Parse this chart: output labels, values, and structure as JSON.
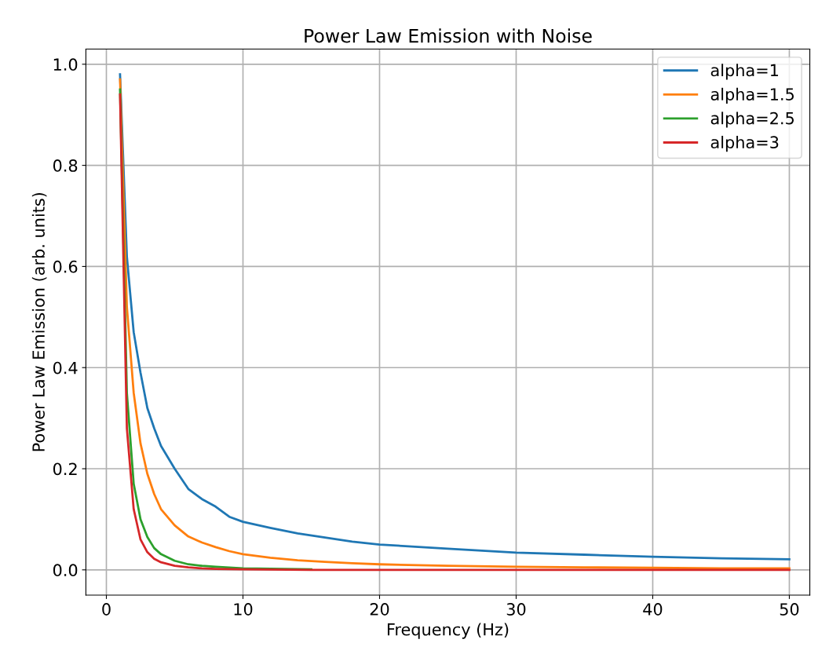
{
  "chart_data": {
    "type": "line",
    "title": "Power Law Emission with Noise",
    "xlabel": "Frequency (Hz)",
    "ylabel": "Power Law Emission (arb. units)",
    "series": [
      {
        "name": "alpha=1",
        "color": "#1f77b4",
        "x": [
          1,
          1.5,
          2,
          2.5,
          3,
          3.5,
          4,
          5,
          6,
          7,
          8,
          9,
          10,
          12,
          14,
          16,
          18,
          20,
          25,
          30,
          35,
          40,
          45,
          50
        ],
        "values": [
          0.98,
          0.62,
          0.47,
          0.39,
          0.32,
          0.28,
          0.245,
          0.2,
          0.16,
          0.14,
          0.125,
          0.105,
          0.095,
          0.083,
          0.072,
          0.064,
          0.056,
          0.05,
          0.042,
          0.034,
          0.03,
          0.026,
          0.023,
          0.021
        ]
      },
      {
        "name": "alpha=1.5",
        "color": "#ff7f0e",
        "x": [
          1,
          1.5,
          2,
          2.5,
          3,
          3.5,
          4,
          5,
          6,
          7,
          8,
          9,
          10,
          12,
          14,
          16,
          18,
          20,
          25,
          30,
          35,
          40,
          45,
          50
        ],
        "values": [
          0.97,
          0.52,
          0.35,
          0.25,
          0.19,
          0.15,
          0.12,
          0.088,
          0.066,
          0.054,
          0.045,
          0.037,
          0.031,
          0.024,
          0.019,
          0.016,
          0.013,
          0.011,
          0.008,
          0.006,
          0.005,
          0.004,
          0.003,
          0.003
        ]
      },
      {
        "name": "alpha=2.5",
        "color": "#2ca02c",
        "x": [
          1,
          1.5,
          2,
          2.5,
          3,
          3.5,
          4,
          5,
          6,
          7,
          8,
          10,
          15
        ],
        "values": [
          0.95,
          0.35,
          0.17,
          0.1,
          0.065,
          0.043,
          0.031,
          0.018,
          0.011,
          0.008,
          0.006,
          0.003,
          0.001
        ]
      },
      {
        "name": "alpha=3",
        "color": "#d62728",
        "x": [
          1,
          1.5,
          2,
          2.5,
          3,
          3.5,
          4,
          5,
          6,
          7,
          8,
          10,
          15,
          20,
          50
        ],
        "values": [
          0.94,
          0.28,
          0.12,
          0.06,
          0.035,
          0.022,
          0.015,
          0.008,
          0.005,
          0.003,
          0.002,
          0.001,
          0.0,
          0.0,
          0.0
        ]
      }
    ],
    "xlim": [
      -1.5,
      51.5
    ],
    "xticks": [
      0,
      10,
      20,
      30,
      40,
      50
    ],
    "ylim": [
      -0.05,
      1.03
    ],
    "yticks": [
      {
        "value": 0,
        "label": "0.0"
      },
      {
        "value": 0.2,
        "label": "0.2"
      },
      {
        "value": 0.4,
        "label": "0.4"
      },
      {
        "value": 0.6,
        "label": "0.6"
      },
      {
        "value": 0.8,
        "label": "0.8"
      },
      {
        "value": 1.0,
        "label": "1.0"
      }
    ],
    "grid": true,
    "legend": "top right"
  }
}
